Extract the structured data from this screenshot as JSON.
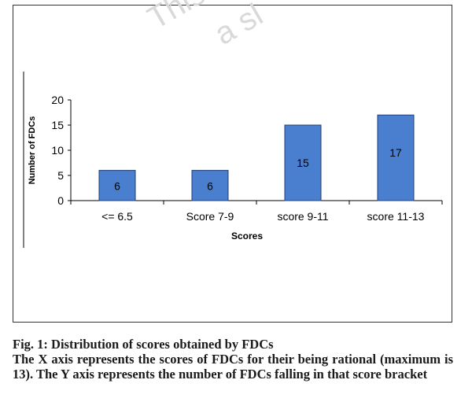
{
  "chart_data": {
    "type": "bar",
    "title": "",
    "xlabel": "Scores",
    "ylabel": "Number of FDCs",
    "categories": [
      "<=  6.5",
      "Score 7-9",
      "score 9-11",
      "score 11-13"
    ],
    "values": [
      6,
      6,
      15,
      17
    ],
    "ylim": [
      0,
      20
    ],
    "yticks": [
      0,
      5,
      10,
      15,
      20
    ],
    "grid": false,
    "legend": "none",
    "bar_color": "#4a7fd0",
    "bar_border_color": "#1f3f7a"
  },
  "watermark": {
    "line1": "This",
    "line2": "a sl"
  },
  "caption": {
    "title": "Fig. 1: Distribution of scores obtained by FDCs",
    "description": "The X axis represents the scores of FDCs for their being rational (maximum is 13). The Y axis represents the number of FDCs falling in that score bracket"
  }
}
